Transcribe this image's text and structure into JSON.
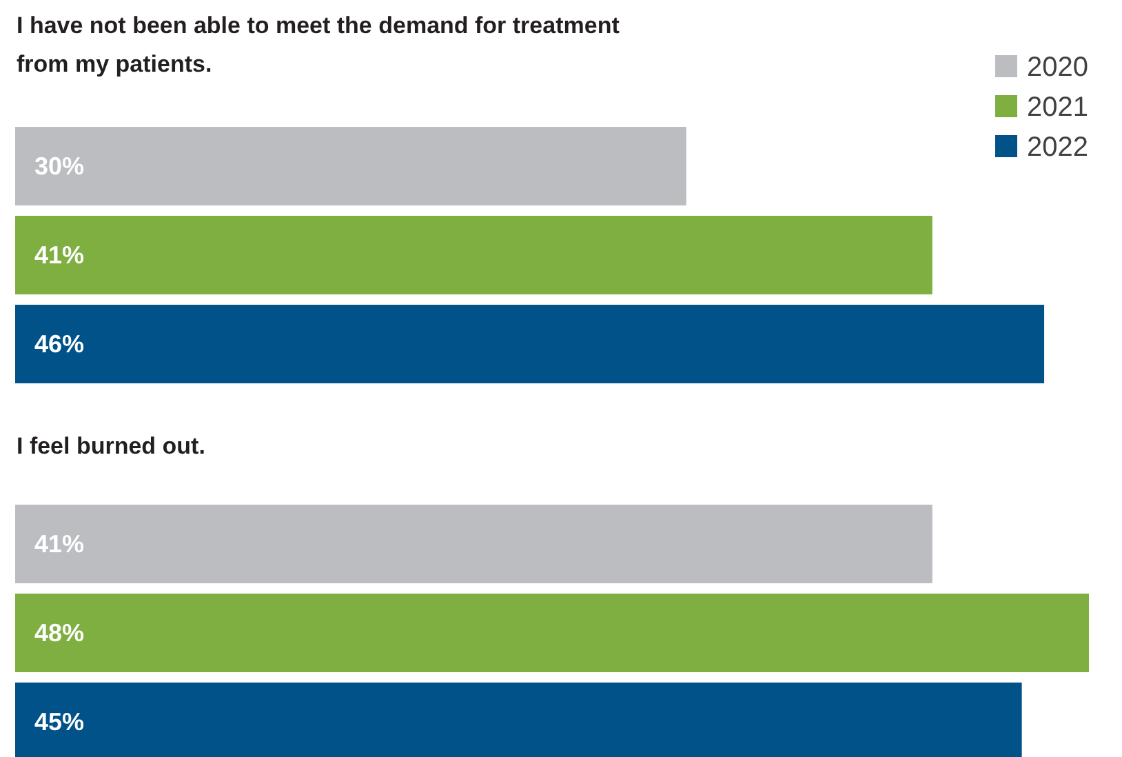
{
  "chart_data": [
    {
      "type": "bar",
      "orientation": "horizontal",
      "title": "I have not been able to meet the demand for treatment from my patients.",
      "categories": [
        null
      ],
      "legend": "top right",
      "series": [
        {
          "name": "2020",
          "color": "#bcbdc1",
          "values": [
            30
          ],
          "value_labels": [
            "30%"
          ]
        },
        {
          "name": "2021",
          "color": "#7faf41",
          "values": [
            41
          ],
          "value_labels": [
            "41%"
          ]
        },
        {
          "name": "2022",
          "color": "#005288",
          "values": [
            46
          ],
          "value_labels": [
            "46%"
          ]
        }
      ]
    },
    {
      "type": "bar",
      "orientation": "horizontal",
      "title": "I feel burned out.",
      "categories": [
        null
      ],
      "legend": false,
      "series": [
        {
          "color": "#bcbdc1",
          "values": [
            41
          ],
          "value_labels": [
            "41%"
          ]
        },
        {
          "color": "#7faf41",
          "values": [
            48
          ],
          "value_labels": [
            "48%"
          ]
        },
        {
          "color": "#005288",
          "values": [
            45
          ],
          "value_labels": [
            "45%"
          ]
        }
      ]
    }
  ]
}
